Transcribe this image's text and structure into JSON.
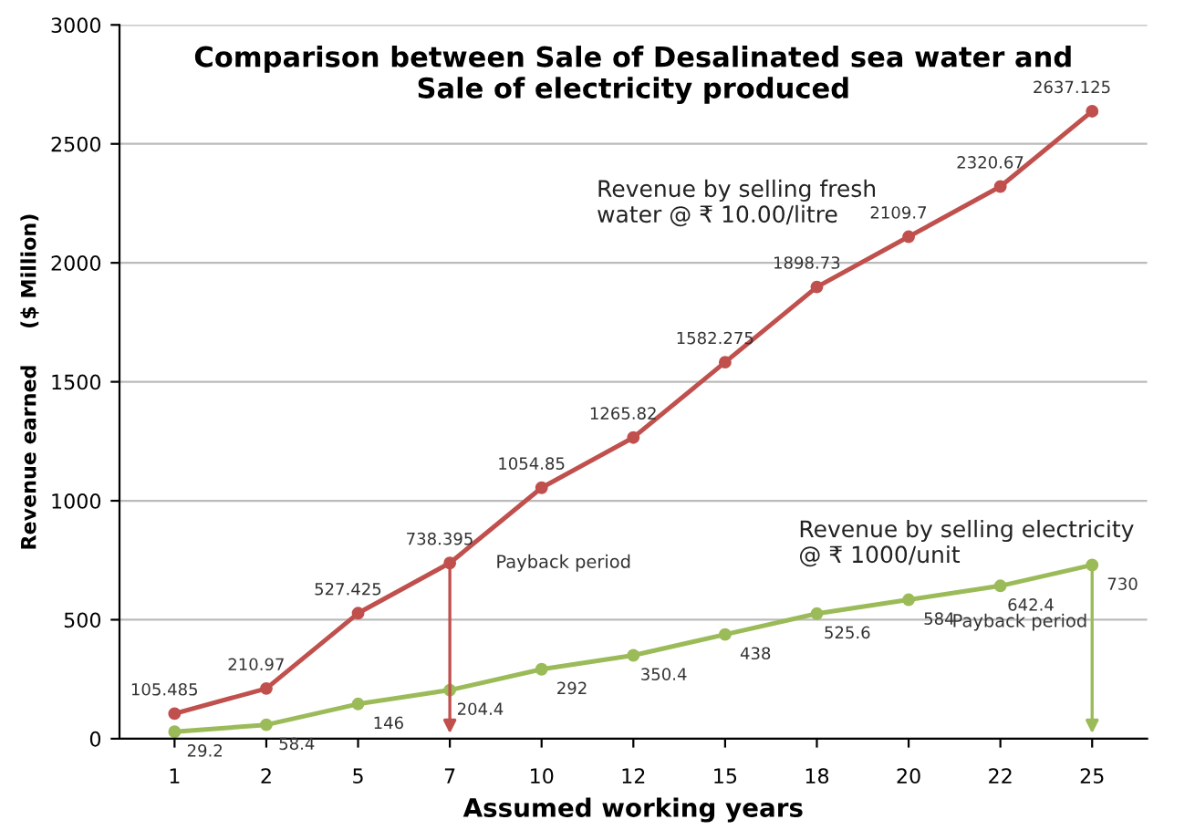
{
  "chart_data": {
    "type": "line",
    "title": "Comparison between Sale of Desalinated sea water and\nSale of electricity produced",
    "xlabel": "Assumed working years",
    "ylabel": "Revenue earned     ($ Million)",
    "categories": [
      "1",
      "2",
      "5",
      "7",
      "10",
      "12",
      "15",
      "18",
      "20",
      "22",
      "25"
    ],
    "series": [
      {
        "name": "Revenue by selling fresh\nwater @ ₹ 10.00/litre",
        "color": "#c0504d",
        "values": [
          105.485,
          210.97,
          527.425,
          738.395,
          1054.85,
          1265.82,
          1582.275,
          1898.73,
          2109.7,
          2320.67,
          2637.125
        ],
        "value_labels": [
          "105.485",
          "210.97",
          "527.425",
          "738.395",
          "1054.85",
          "1265.82",
          "1582.275",
          "1898.73",
          "2109.7",
          "2320.67",
          "2637.125"
        ]
      },
      {
        "name": "Revenue by selling electricity\n@ ₹ 1000/unit",
        "color": "#9bbb59",
        "values": [
          29.2,
          58.4,
          146,
          204.4,
          292,
          350.4,
          438,
          525.6,
          584,
          642.4,
          730
        ],
        "value_labels": [
          "29.2",
          "58.4",
          "146",
          "204.4",
          "292",
          "350.4",
          "438",
          "525.6",
          "584",
          "642.4",
          "730"
        ]
      }
    ],
    "ylim": [
      0,
      3000
    ],
    "yticks": [
      0,
      500,
      1000,
      1500,
      2000,
      2500,
      3000
    ],
    "grid": "y",
    "legend": false,
    "marker": "circle",
    "line_style": "solid",
    "annotations": [
      {
        "text": "Payback period",
        "x": "7",
        "y": 738.395
      },
      {
        "text": "Payback period",
        "x": "25",
        "y": 730
      }
    ]
  }
}
